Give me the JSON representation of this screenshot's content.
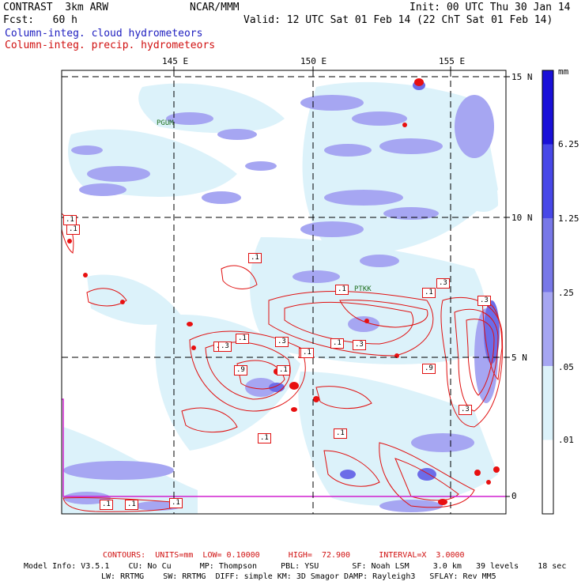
{
  "header": {
    "model": "CONTRAST  3km ARW",
    "org": "NCAR/MMM",
    "init": "Init: 00 UTC Thu 30 Jan 14",
    "fcst": "Fcst:   60 h",
    "valid": "Valid: 12 UTC Sat 01 Feb 14 (22 ChT Sat 01 Feb 14)",
    "field1": "Column-integ. cloud hydrometeors",
    "field2": "Column-integ. precip. hydrometeors"
  },
  "map": {
    "lon_labels": [
      "145 E",
      "150 E",
      "155 E"
    ],
    "lat_labels": [
      "15 N",
      "10 N",
      "5 N",
      "0"
    ],
    "stations": [
      "PGUM",
      "PTKK"
    ],
    "contour_labels": [
      ".1",
      ".1",
      ".1",
      ".1",
      ".3",
      ".1",
      ".3",
      ".1",
      ".1",
      ".3",
      ".1",
      ".3",
      ".9",
      ".1",
      ".1",
      ".9",
      ".3",
      ".3",
      ".1",
      ".1",
      ".1",
      ".1",
      ".1",
      ".3"
    ]
  },
  "colorbar": {
    "unit": "mm",
    "levels": [
      "6.25",
      "1.25",
      ".25",
      ".05",
      ".01"
    ],
    "colors": [
      "#1a10d8",
      "#4848e8",
      "#7878e8",
      "#a6a6f2",
      "#dcf2fa",
      "#ffffff"
    ]
  },
  "footer": {
    "contours": "CONTOURS:  UNITS=mm  LOW= 0.10000      HIGH=  72.900      INTERVAL=X  3.0000",
    "model_info": "Model Info: V3.5.1    CU: No Cu      MP: Thompson     PBL: YSU       SF: Noah LSM     3.0 km   39 levels    18 sec",
    "physics": "LW: RRTMG    SW: RRTMG  DIFF: simple KM: 3D Smagor DAMP: Rayleigh3   SFLAY: Rev MM5"
  }
}
